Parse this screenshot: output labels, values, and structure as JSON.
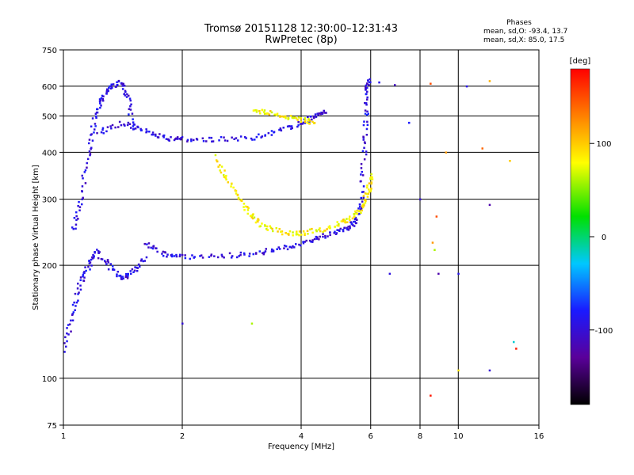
{
  "chart_data": {
    "type": "scatter",
    "title": "Tromsø 20151128 12:30:00–12:31:43",
    "subtitle": "RwPretec (8p)",
    "xlabel": "Frequency [MHz]",
    "ylabel": "Stationary phase Virtual Height [km]",
    "x_scale": "log",
    "y_scale": "log",
    "xlim": [
      1,
      16
    ],
    "ylim": [
      75,
      750
    ],
    "x_ticks": [
      1,
      2,
      4,
      6,
      8,
      10,
      16
    ],
    "y_ticks": [
      75,
      100,
      200,
      300,
      400,
      500,
      600,
      750
    ],
    "grid": true,
    "stats": {
      "heading": "Phases",
      "line_o": "mean, sd,O: -93.4, 13.7",
      "line_x": "mean, sd,X:  85.0, 17.5"
    },
    "colorbar": {
      "label": "[deg]",
      "ticks": [
        -100,
        0,
        100
      ],
      "range": [
        -180,
        180
      ],
      "colormap": "rainbow: black-purple-blue-cyan-green-yellow-red"
    },
    "traces": [
      {
        "name": "",
        "phase": -95,
        "points": [
          [
            1.05,
            250
          ],
          [
            1.1,
            300
          ],
          [
            1.15,
            400
          ],
          [
            1.2,
            500
          ],
          [
            1.25,
            560
          ],
          [
            1.3,
            600
          ],
          [
            1.4,
            620
          ],
          [
            1.45,
            560
          ],
          [
            1.5,
            450
          ]
        ]
      },
      {
        "name": "",
        "phase": -95,
        "points": [
          [
            1.2,
            450
          ],
          [
            1.4,
            480
          ],
          [
            1.6,
            460
          ],
          [
            1.8,
            440
          ],
          [
            2.0,
            435
          ],
          [
            2.4,
            435
          ],
          [
            3.0,
            440
          ],
          [
            3.5,
            460
          ],
          [
            4.0,
            480
          ],
          [
            4.3,
            500
          ],
          [
            4.6,
            520
          ]
        ]
      },
      {
        "name": "",
        "phase": -95,
        "points": [
          [
            1.6,
            230
          ],
          [
            1.8,
            215
          ],
          [
            2.0,
            212
          ],
          [
            2.5,
            213
          ],
          [
            3.0,
            216
          ],
          [
            3.5,
            222
          ],
          [
            4.0,
            230
          ],
          [
            4.5,
            240
          ],
          [
            5.0,
            250
          ],
          [
            5.3,
            255
          ],
          [
            5.5,
            265
          ],
          [
            5.65,
            300
          ],
          [
            5.75,
            400
          ],
          [
            5.8,
            500
          ],
          [
            5.85,
            600
          ],
          [
            5.9,
            630
          ]
        ]
      },
      {
        "name": "",
        "phase": 85,
        "points": [
          [
            2.4,
            390
          ],
          [
            2.6,
            340
          ],
          [
            2.8,
            300
          ],
          [
            3.0,
            270
          ],
          [
            3.2,
            255
          ],
          [
            3.6,
            245
          ],
          [
            4.0,
            245
          ],
          [
            4.5,
            250
          ],
          [
            5.0,
            260
          ],
          [
            5.4,
            270
          ],
          [
            5.7,
            290
          ],
          [
            5.9,
            320
          ],
          [
            6.0,
            350
          ]
        ]
      },
      {
        "name": "",
        "phase": 85,
        "points": [
          [
            3.0,
            520
          ],
          [
            3.3,
            515
          ],
          [
            3.6,
            500
          ],
          [
            4.0,
            490
          ],
          [
            4.3,
            485
          ]
        ]
      },
      {
        "name": "",
        "phase": -95,
        "points": [
          [
            1.0,
            120
          ],
          [
            1.05,
            150
          ],
          [
            1.1,
            180
          ],
          [
            1.15,
            200
          ],
          [
            1.2,
            220
          ],
          [
            1.3,
            200
          ],
          [
            1.4,
            185
          ],
          [
            1.5,
            195
          ],
          [
            1.6,
            210
          ]
        ]
      }
    ],
    "extra_points": [
      [
        8.5,
        610,
        150
      ],
      [
        9.3,
        400,
        120
      ],
      [
        10.5,
        600,
        -90
      ],
      [
        11.5,
        410,
        140
      ],
      [
        12.0,
        620,
        110
      ],
      [
        13.5,
        380,
        100
      ],
      [
        8.8,
        270,
        150
      ],
      [
        8.6,
        230,
        120
      ],
      [
        8.7,
        220,
        60
      ],
      [
        8.9,
        190,
        -120
      ],
      [
        10.0,
        190,
        -90
      ],
      [
        12.0,
        290,
        -120
      ],
      [
        12.0,
        105,
        -100
      ],
      [
        14.0,
        120,
        170
      ],
      [
        13.8,
        125,
        -20
      ],
      [
        10.0,
        105,
        90
      ],
      [
        8.5,
        90,
        170
      ],
      [
        6.3,
        615,
        -90
      ],
      [
        6.9,
        605,
        -110
      ],
      [
        6.7,
        190,
        -95
      ],
      [
        8.0,
        300,
        -100
      ],
      [
        7.5,
        480,
        -80
      ],
      [
        3.0,
        140,
        60
      ],
      [
        2.0,
        140,
        -100
      ]
    ]
  }
}
